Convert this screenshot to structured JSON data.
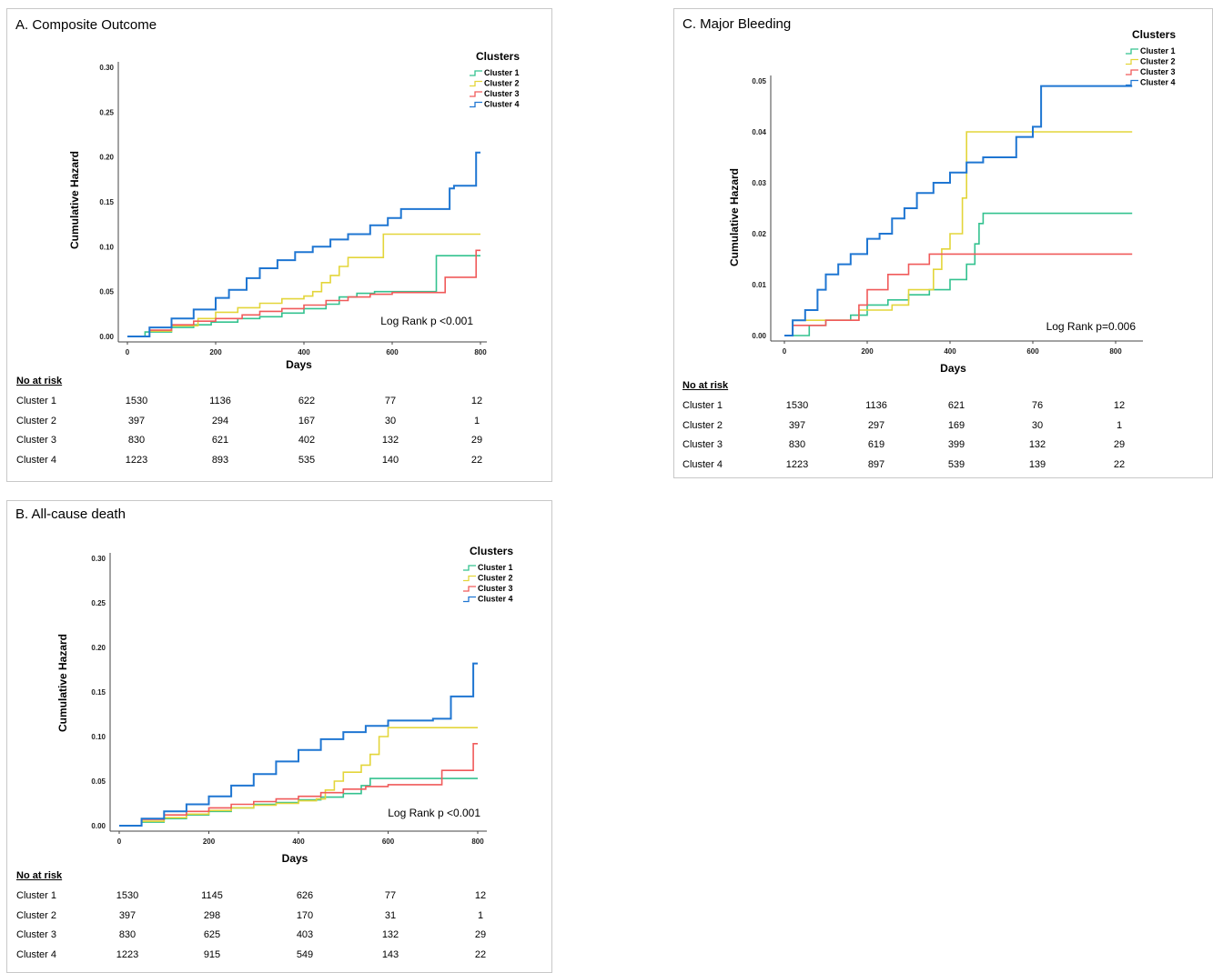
{
  "colors": {
    "cluster1": "#33c28f",
    "cluster2": "#e3d53a",
    "cluster3": "#f05a5a",
    "cluster4": "#1f76d2"
  },
  "chart_data": [
    {
      "id": "A",
      "type": "line",
      "title": "A. Composite Outcome",
      "xlabel": "Days",
      "ylabel": "Cumulative Hazard",
      "xlim": [
        0,
        800
      ],
      "ylim": [
        0,
        0.3
      ],
      "xticks": [
        "0",
        "200",
        "400",
        "600",
        "800"
      ],
      "yticks": [
        "0.00",
        "0.05",
        "0.10",
        "0.15",
        "0.20",
        "0.25",
        "0.30"
      ],
      "legend_title": "Clusters",
      "legend_position": "top-right",
      "annotation": "Log Rank p <0.001",
      "series": [
        {
          "name": "Cluster 1",
          "color": "#33c28f",
          "x": [
            0,
            40,
            100,
            150,
            190,
            250,
            300,
            350,
            400,
            450,
            480,
            520,
            560,
            600,
            650,
            690,
            700,
            800
          ],
          "y": [
            0.0,
            0.005,
            0.01,
            0.013,
            0.016,
            0.02,
            0.022,
            0.026,
            0.031,
            0.036,
            0.044,
            0.048,
            0.05,
            0.05,
            0.05,
            0.05,
            0.09,
            0.09
          ]
        },
        {
          "name": "Cluster 2",
          "color": "#e3d53a",
          "x": [
            0,
            50,
            100,
            160,
            200,
            250,
            300,
            350,
            400,
            420,
            440,
            460,
            480,
            500,
            520,
            560,
            580,
            800
          ],
          "y": [
            0.0,
            0.006,
            0.012,
            0.02,
            0.027,
            0.032,
            0.037,
            0.042,
            0.045,
            0.05,
            0.06,
            0.068,
            0.078,
            0.088,
            0.088,
            0.088,
            0.114,
            0.114
          ]
        },
        {
          "name": "Cluster 3",
          "color": "#f05a5a",
          "x": [
            0,
            50,
            100,
            150,
            200,
            260,
            300,
            350,
            400,
            450,
            500,
            550,
            600,
            650,
            700,
            720,
            780,
            790,
            800
          ],
          "y": [
            0.0,
            0.007,
            0.013,
            0.017,
            0.02,
            0.024,
            0.028,
            0.031,
            0.035,
            0.04,
            0.044,
            0.047,
            0.049,
            0.049,
            0.049,
            0.066,
            0.066,
            0.096,
            0.096
          ]
        },
        {
          "name": "Cluster 4",
          "color": "#1f76d2",
          "x": [
            0,
            50,
            100,
            150,
            200,
            230,
            270,
            300,
            340,
            380,
            420,
            460,
            500,
            550,
            590,
            620,
            680,
            730,
            740,
            790,
            800
          ],
          "y": [
            0.0,
            0.01,
            0.02,
            0.03,
            0.043,
            0.052,
            0.065,
            0.076,
            0.085,
            0.094,
            0.1,
            0.108,
            0.114,
            0.124,
            0.132,
            0.142,
            0.142,
            0.165,
            0.168,
            0.205,
            0.205
          ]
        }
      ]
    },
    {
      "id": "B",
      "type": "line",
      "title": "B. All-cause death",
      "xlabel": "Days",
      "ylabel": "Cumulative Hazard",
      "xlim": [
        0,
        800
      ],
      "ylim": [
        0,
        0.3
      ],
      "xticks": [
        "0",
        "200",
        "400",
        "600",
        "800"
      ],
      "yticks": [
        "0.00",
        "0.05",
        "0.10",
        "0.15",
        "0.20",
        "0.25",
        "0.30"
      ],
      "legend_title": "Clusters",
      "legend_position": "top-right",
      "annotation": "Log Rank p <0.001",
      "series": [
        {
          "name": "Cluster 1",
          "color": "#33c28f",
          "x": [
            0,
            50,
            100,
            150,
            200,
            250,
            300,
            350,
            400,
            450,
            500,
            540,
            560,
            600,
            800
          ],
          "y": [
            0.0,
            0.004,
            0.008,
            0.012,
            0.016,
            0.02,
            0.024,
            0.026,
            0.029,
            0.032,
            0.036,
            0.045,
            0.053,
            0.053,
            0.053
          ]
        },
        {
          "name": "Cluster 2",
          "color": "#e3d53a",
          "x": [
            0,
            50,
            100,
            150,
            200,
            250,
            300,
            350,
            400,
            440,
            460,
            480,
            500,
            540,
            560,
            580,
            600,
            800
          ],
          "y": [
            0.0,
            0.005,
            0.009,
            0.013,
            0.017,
            0.02,
            0.023,
            0.025,
            0.028,
            0.03,
            0.04,
            0.05,
            0.06,
            0.068,
            0.08,
            0.1,
            0.11,
            0.11
          ]
        },
        {
          "name": "Cluster 3",
          "color": "#f05a5a",
          "x": [
            0,
            50,
            100,
            150,
            200,
            250,
            300,
            350,
            400,
            450,
            500,
            550,
            600,
            650,
            700,
            720,
            780,
            790,
            800
          ],
          "y": [
            0.0,
            0.007,
            0.012,
            0.016,
            0.02,
            0.024,
            0.027,
            0.03,
            0.033,
            0.037,
            0.041,
            0.044,
            0.046,
            0.046,
            0.046,
            0.062,
            0.062,
            0.092,
            0.092
          ]
        },
        {
          "name": "Cluster 4",
          "color": "#1f76d2",
          "x": [
            0,
            50,
            100,
            150,
            200,
            250,
            300,
            350,
            400,
            450,
            500,
            550,
            600,
            650,
            700,
            740,
            790,
            800
          ],
          "y": [
            0.0,
            0.008,
            0.016,
            0.024,
            0.033,
            0.045,
            0.058,
            0.072,
            0.085,
            0.097,
            0.105,
            0.112,
            0.118,
            0.118,
            0.12,
            0.145,
            0.182,
            0.182
          ]
        }
      ]
    },
    {
      "id": "C",
      "type": "line",
      "title": "C. Major Bleeding",
      "xlabel": "Days",
      "ylabel": "Cumulative Hazard",
      "xlim": [
        0,
        800
      ],
      "ylim": [
        0,
        0.05
      ],
      "xticks": [
        "0",
        "200",
        "400",
        "600",
        "800"
      ],
      "yticks": [
        "0.00",
        "0.01",
        "0.02",
        "0.03",
        "0.04",
        "0.05"
      ],
      "legend_title": "Clusters",
      "legend_position": "top-right",
      "annotation": "Log Rank p=0.006",
      "series": [
        {
          "name": "Cluster 1",
          "color": "#33c28f",
          "x": [
            0,
            20,
            60,
            100,
            160,
            200,
            250,
            300,
            350,
            400,
            440,
            460,
            470,
            480,
            500,
            840
          ],
          "y": [
            0.0,
            0.0,
            0.002,
            0.003,
            0.004,
            0.006,
            0.007,
            0.008,
            0.009,
            0.011,
            0.014,
            0.018,
            0.022,
            0.024,
            0.024,
            0.024
          ]
        },
        {
          "name": "Cluster 2",
          "color": "#e3d53a",
          "x": [
            0,
            20,
            100,
            180,
            260,
            300,
            360,
            380,
            400,
            430,
            440,
            460,
            840
          ],
          "y": [
            0.0,
            0.003,
            0.003,
            0.005,
            0.006,
            0.009,
            0.013,
            0.017,
            0.02,
            0.027,
            0.04,
            0.04,
            0.04
          ]
        },
        {
          "name": "Cluster 3",
          "color": "#f05a5a",
          "x": [
            0,
            20,
            100,
            180,
            200,
            250,
            300,
            350,
            380,
            840
          ],
          "y": [
            0.0,
            0.002,
            0.003,
            0.006,
            0.009,
            0.012,
            0.014,
            0.016,
            0.016,
            0.016
          ]
        },
        {
          "name": "Cluster 4",
          "color": "#1f76d2",
          "x": [
            0,
            20,
            50,
            80,
            100,
            130,
            160,
            200,
            230,
            260,
            290,
            320,
            360,
            400,
            440,
            480,
            520,
            560,
            600,
            620,
            700,
            840
          ],
          "y": [
            0.0,
            0.003,
            0.005,
            0.009,
            0.012,
            0.014,
            0.016,
            0.019,
            0.02,
            0.023,
            0.025,
            0.028,
            0.03,
            0.032,
            0.034,
            0.035,
            0.035,
            0.039,
            0.041,
            0.049,
            0.049,
            0.049
          ]
        }
      ]
    }
  ],
  "risk_tables": {
    "A": {
      "title": "No at risk",
      "rows": [
        {
          "label": "Cluster 1",
          "values": [
            "1530",
            "1136",
            "622",
            "77",
            "12"
          ]
        },
        {
          "label": "Cluster 2",
          "values": [
            "397",
            "294",
            "167",
            "30",
            "1"
          ]
        },
        {
          "label": "Cluster 3",
          "values": [
            "830",
            "621",
            "402",
            "132",
            "29"
          ]
        },
        {
          "label": "Cluster 4",
          "values": [
            "1223",
            "893",
            "535",
            "140",
            "22"
          ]
        }
      ]
    },
    "B": {
      "title": "No at risk",
      "rows": [
        {
          "label": "Cluster 1",
          "values": [
            "1530",
            "1145",
            "626",
            "77",
            "12"
          ]
        },
        {
          "label": "Cluster 2",
          "values": [
            "397",
            "298",
            "170",
            "31",
            "1"
          ]
        },
        {
          "label": "Cluster 3",
          "values": [
            "830",
            "625",
            "403",
            "132",
            "29"
          ]
        },
        {
          "label": "Cluster 4",
          "values": [
            "1223",
            "915",
            "549",
            "143",
            "22"
          ]
        }
      ]
    },
    "C": {
      "title": "No at risk",
      "rows": [
        {
          "label": "Cluster 1",
          "values": [
            "1530",
            "1136",
            "621",
            "76",
            "12"
          ]
        },
        {
          "label": "Cluster 2",
          "values": [
            "397",
            "297",
            "169",
            "30",
            "1"
          ]
        },
        {
          "label": "Cluster 3",
          "values": [
            "830",
            "619",
            "399",
            "132",
            "29"
          ]
        },
        {
          "label": "Cluster 4",
          "values": [
            "1223",
            "897",
            "539",
            "139",
            "22"
          ]
        }
      ]
    }
  }
}
